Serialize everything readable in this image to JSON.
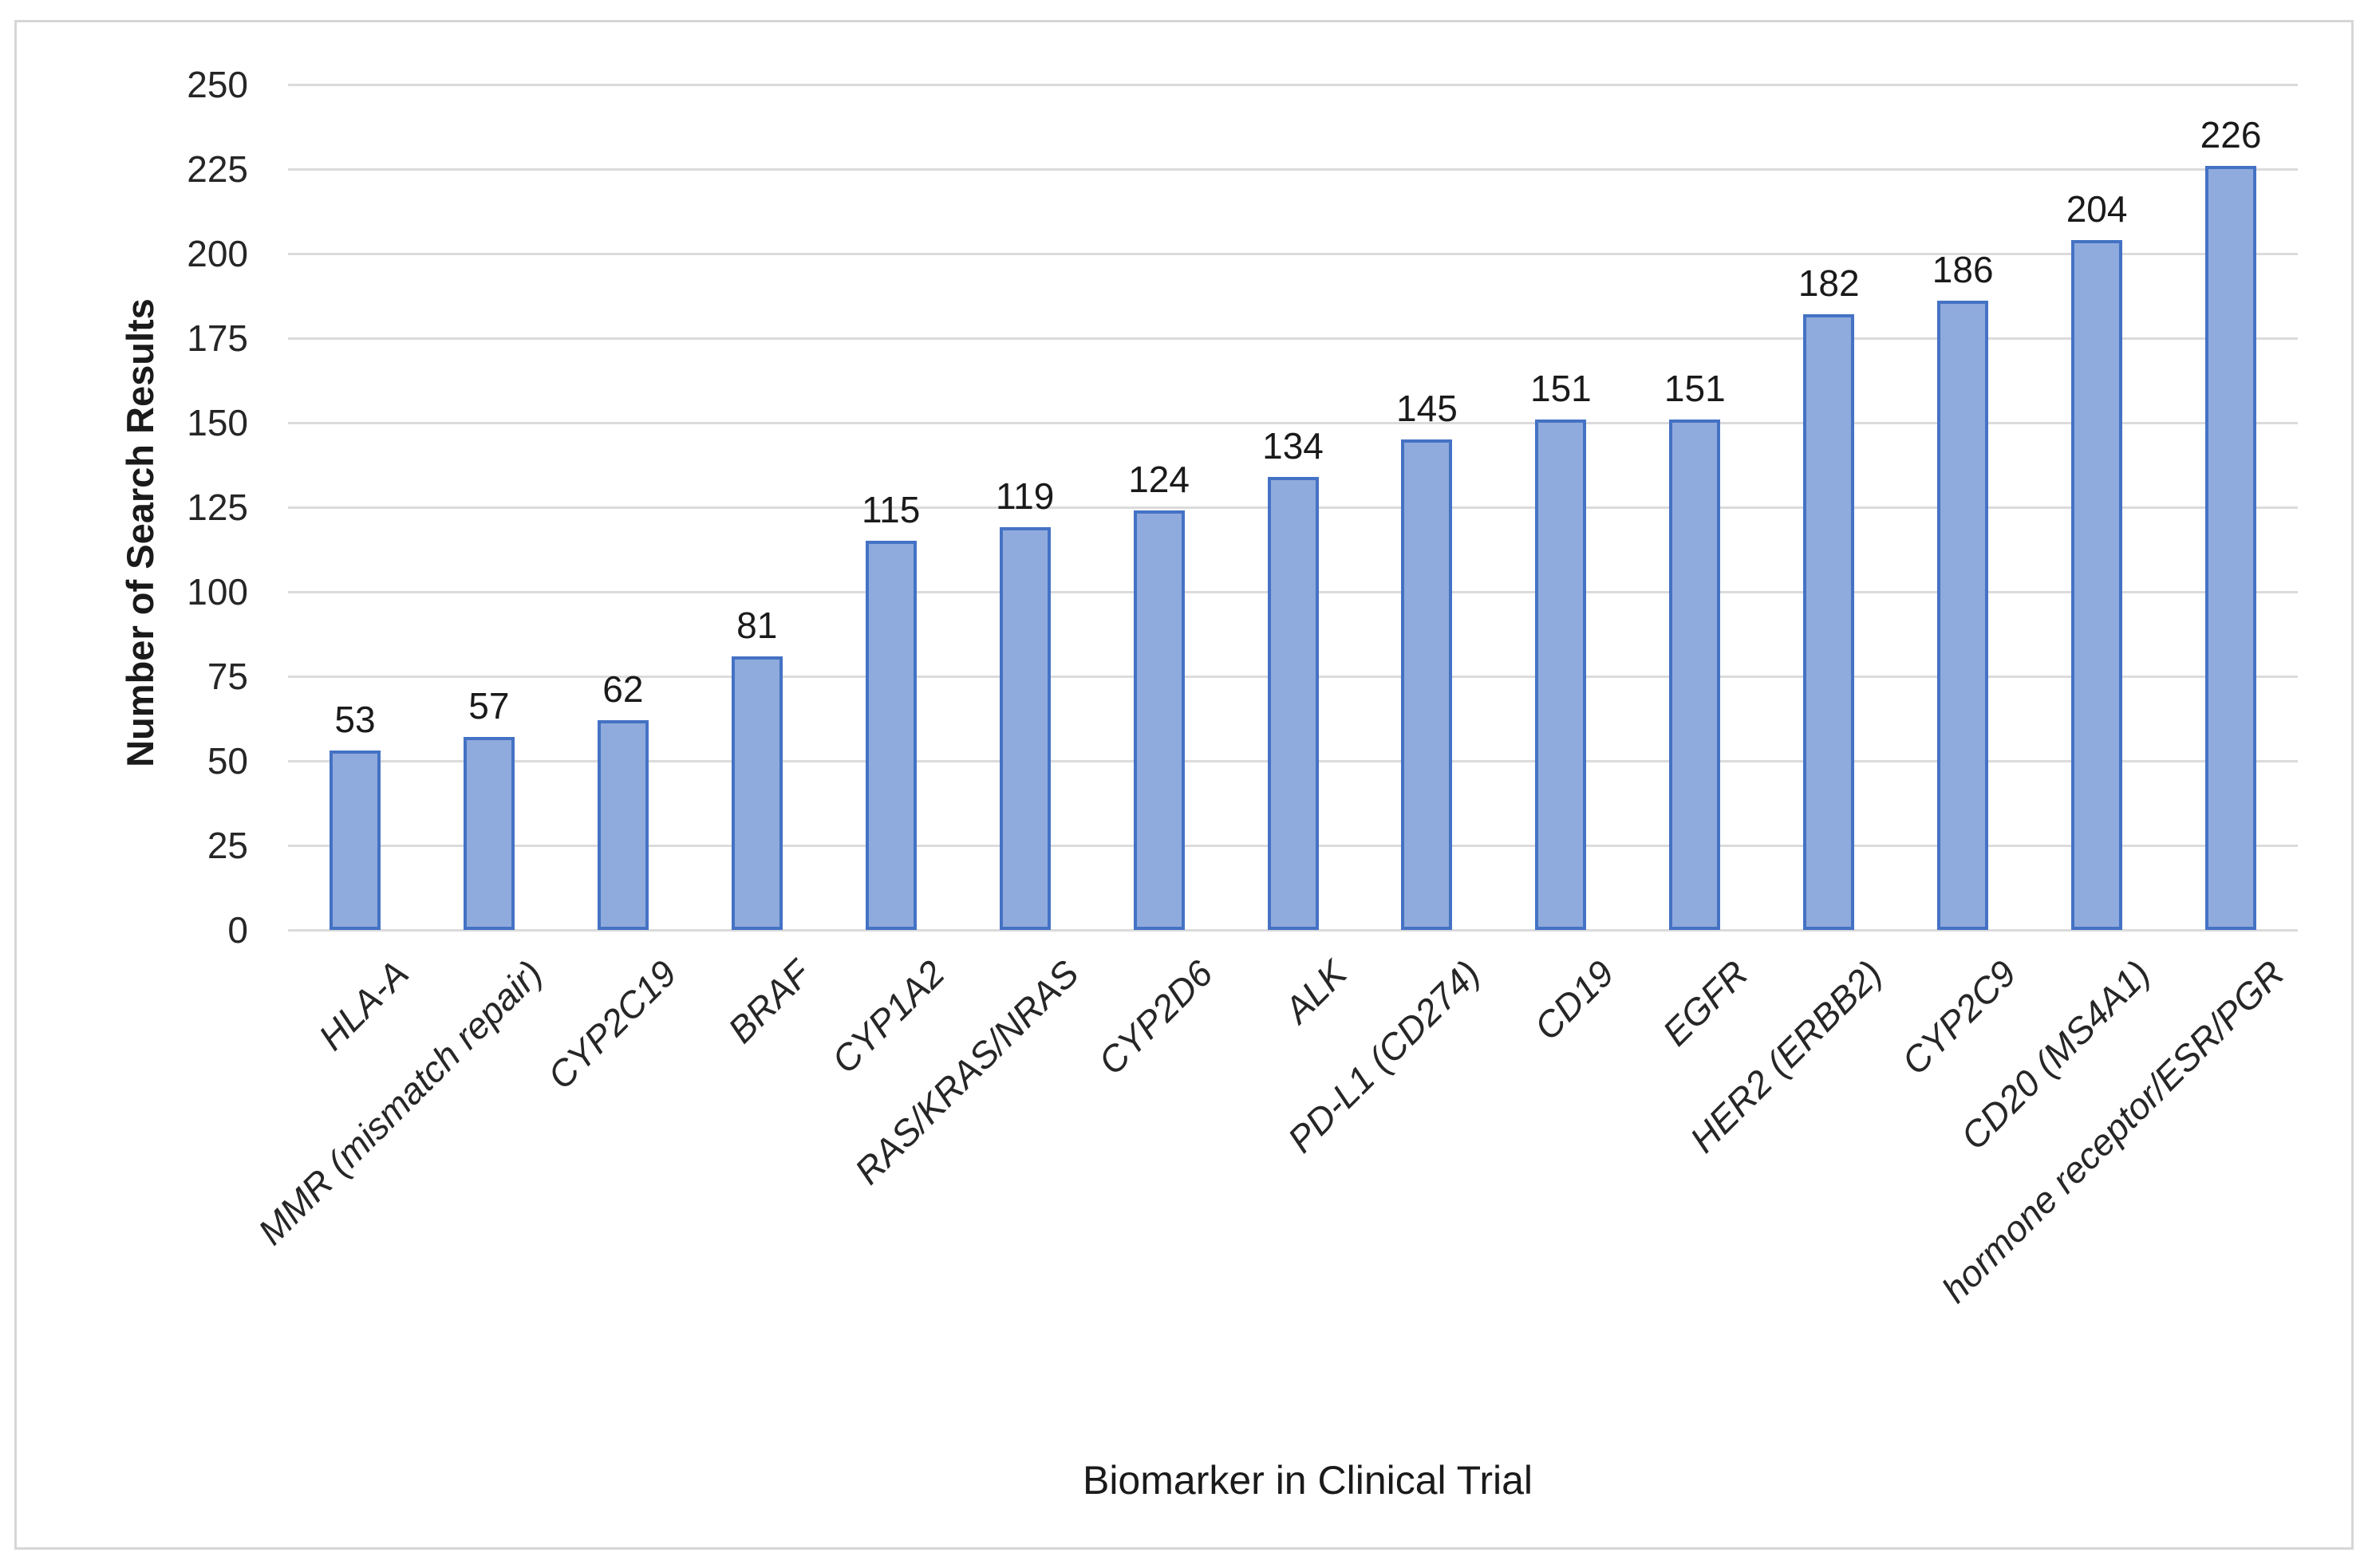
{
  "chart_data": {
    "type": "bar",
    "title": "",
    "xlabel": "Biomarker in Clinical Trial",
    "ylabel": "Number of Search Results",
    "categories": [
      "HLA-A",
      "MMR (mismatch repair)",
      "CYP2C19",
      "BRAF",
      "CYP1A2",
      "RAS/KRAS/NRAS",
      "CYP2D6",
      "ALK",
      "PD-L1 (CD274)",
      "CD19",
      "EGFR",
      "HER2 (ERBB2)",
      "CYP2C9",
      "CD20 (MS4A1)",
      "hormone receptor/ESR/PGR"
    ],
    "values": [
      53,
      57,
      62,
      81,
      115,
      119,
      124,
      134,
      145,
      151,
      151,
      182,
      186,
      204,
      226
    ],
    "data_labels": [
      53,
      57,
      62,
      81,
      115,
      119,
      124,
      134,
      145,
      151,
      151,
      182,
      186,
      204,
      226
    ],
    "ylim": [
      0,
      250
    ],
    "y_ticks": [
      0,
      25,
      50,
      75,
      100,
      125,
      150,
      175,
      200,
      225,
      250
    ],
    "grid": true,
    "legend": "none",
    "colors": {
      "bar_fill": "#8FAADC",
      "bar_border": "#4472C4",
      "gridline": "#DBDBDB",
      "frame_border": "#D6D6D6",
      "label_text": "#262626"
    }
  }
}
